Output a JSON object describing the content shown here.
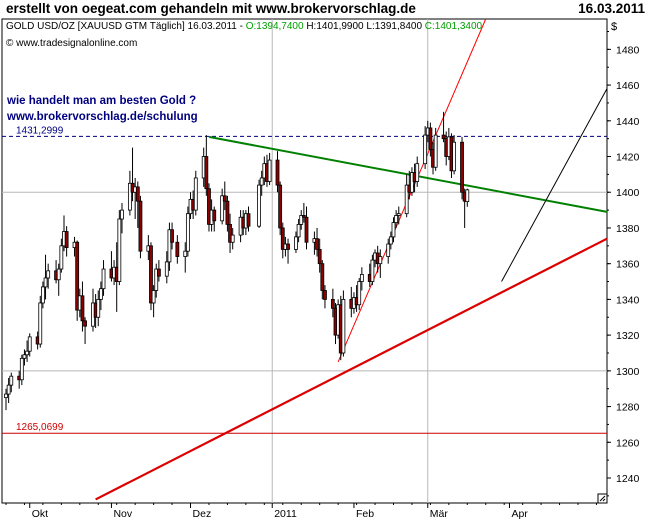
{
  "header": {
    "title": "erstellt von oegeat.com gehandeln mit www.brokervorschlag.de",
    "date": "16.03.2011"
  },
  "chart_data": {
    "type": "candlestick",
    "instrument_line": {
      "label": "GOLD USD/OZ [XAUUSD GTM  Täglich] 16.03.2011",
      "open": "O:1394,7400",
      "high": "H:1401,9900",
      "low": "L:1391,8400",
      "close": "C:1401,3400"
    },
    "copyright": "© www.tradesignalonline.com",
    "currency_label": "$",
    "annotation": {
      "line1": "wie handelt man am besten Gold ?",
      "line2": "www.brokervorschlag.de/schulung"
    },
    "levels": [
      {
        "value": 1431.2999,
        "label": "1431,2999",
        "color": "#000080",
        "style": "dashed"
      },
      {
        "value": 1265.0699,
        "label": "1265,0699",
        "color": "#cc0000",
        "style": "solid"
      }
    ],
    "y_ticks": [
      1240,
      1260,
      1280,
      1300,
      1320,
      1340,
      1360,
      1380,
      1400,
      1420,
      1440,
      1460,
      1480
    ],
    "ylim": [
      1226,
      1497
    ],
    "x_range": [
      "2010-09-22",
      "2011-05-08"
    ],
    "x_ticks": [
      {
        "date": "2010-10-01",
        "label": "Okt"
      },
      {
        "date": "2010-11-01",
        "label": "Nov"
      },
      {
        "date": "2010-12-01",
        "label": "Dez"
      },
      {
        "date": "2011-01-01",
        "label": "2011"
      },
      {
        "date": "2011-02-01",
        "label": "Feb"
      },
      {
        "date": "2011-03-01",
        "label": "Mär"
      },
      {
        "date": "2011-04-01",
        "label": "Apr"
      }
    ],
    "grid": {
      "horizontal": [
        1300,
        1400
      ],
      "vertical": [
        "2011-01-01",
        "2011-03-01"
      ]
    },
    "trendlines": [
      {
        "name": "green",
        "color": "#008000",
        "width": 2,
        "from": {
          "x": "2010-12-08",
          "y": 1431
        },
        "to": {
          "x": "2011-05-08",
          "y": 1389
        }
      },
      {
        "name": "red-long",
        "color": "#dd0000",
        "width": 2.2,
        "from": {
          "x": "2010-10-26",
          "y": 1228
        },
        "to": {
          "x": "2011-05-08",
          "y": 1374
        }
      },
      {
        "name": "red-thin",
        "color": "#ff0000",
        "width": 1,
        "from": {
          "x": "2011-01-26",
          "y": 1305
        },
        "to": {
          "x": "2011-03-23",
          "y": 1497
        }
      },
      {
        "name": "black",
        "color": "#000000",
        "width": 1,
        "from": {
          "x": "2011-03-29",
          "y": 1350
        },
        "to": {
          "x": "2011-05-08",
          "y": 1458
        }
      }
    ],
    "candles": [
      {
        "d": "2010-09-22",
        "o": 1285,
        "h": 1290,
        "l": 1278,
        "c": 1287
      },
      {
        "d": "2010-09-23",
        "o": 1287,
        "h": 1296,
        "l": 1282,
        "c": 1292
      },
      {
        "d": "2010-09-24",
        "o": 1292,
        "h": 1299,
        "l": 1288,
        "c": 1297
      },
      {
        "d": "2010-09-27",
        "o": 1297,
        "h": 1300,
        "l": 1290,
        "c": 1295
      },
      {
        "d": "2010-09-28",
        "o": 1295,
        "h": 1309,
        "l": 1292,
        "c": 1307
      },
      {
        "d": "2010-09-29",
        "o": 1307,
        "h": 1312,
        "l": 1303,
        "c": 1309
      },
      {
        "d": "2010-09-30",
        "o": 1309,
        "h": 1317,
        "l": 1305,
        "c": 1311
      },
      {
        "d": "2010-10-01",
        "o": 1311,
        "h": 1321,
        "l": 1308,
        "c": 1319
      },
      {
        "d": "2010-10-04",
        "o": 1319,
        "h": 1322,
        "l": 1312,
        "c": 1315
      },
      {
        "d": "2010-10-05",
        "o": 1315,
        "h": 1342,
        "l": 1313,
        "c": 1338
      },
      {
        "d": "2010-10-06",
        "o": 1338,
        "h": 1350,
        "l": 1335,
        "c": 1347
      },
      {
        "d": "2010-10-07",
        "o": 1347,
        "h": 1365,
        "l": 1340,
        "c": 1352
      },
      {
        "d": "2010-10-08",
        "o": 1352,
        "h": 1360,
        "l": 1346,
        "c": 1356
      },
      {
        "d": "2010-10-11",
        "o": 1356,
        "h": 1362,
        "l": 1349,
        "c": 1351
      },
      {
        "d": "2010-10-12",
        "o": 1351,
        "h": 1360,
        "l": 1342,
        "c": 1357
      },
      {
        "d": "2010-10-13",
        "o": 1357,
        "h": 1374,
        "l": 1355,
        "c": 1370
      },
      {
        "d": "2010-10-14",
        "o": 1370,
        "h": 1387,
        "l": 1367,
        "c": 1378
      },
      {
        "d": "2010-10-15",
        "o": 1378,
        "h": 1381,
        "l": 1364,
        "c": 1369
      },
      {
        "d": "2010-10-18",
        "o": 1369,
        "h": 1375,
        "l": 1364,
        "c": 1372
      },
      {
        "d": "2010-10-19",
        "o": 1372,
        "h": 1373,
        "l": 1328,
        "c": 1334
      },
      {
        "d": "2010-10-20",
        "o": 1334,
        "h": 1346,
        "l": 1330,
        "c": 1342
      },
      {
        "d": "2010-10-21",
        "o": 1342,
        "h": 1350,
        "l": 1322,
        "c": 1328
      },
      {
        "d": "2010-10-22",
        "o": 1328,
        "h": 1330,
        "l": 1315,
        "c": 1325
      },
      {
        "d": "2010-10-25",
        "o": 1325,
        "h": 1346,
        "l": 1322,
        "c": 1338
      },
      {
        "d": "2010-10-26",
        "o": 1338,
        "h": 1343,
        "l": 1324,
        "c": 1330
      },
      {
        "d": "2010-10-27",
        "o": 1330,
        "h": 1345,
        "l": 1325,
        "c": 1340
      },
      {
        "d": "2010-10-28",
        "o": 1340,
        "h": 1350,
        "l": 1334,
        "c": 1346
      },
      {
        "d": "2010-10-29",
        "o": 1346,
        "h": 1362,
        "l": 1342,
        "c": 1357
      },
      {
        "d": "2010-11-01",
        "o": 1357,
        "h": 1367,
        "l": 1350,
        "c": 1352
      },
      {
        "d": "2010-11-02",
        "o": 1352,
        "h": 1362,
        "l": 1348,
        "c": 1358
      },
      {
        "d": "2010-11-03",
        "o": 1358,
        "h": 1372,
        "l": 1333,
        "c": 1350
      },
      {
        "d": "2010-11-04",
        "o": 1350,
        "h": 1390,
        "l": 1348,
        "c": 1385
      },
      {
        "d": "2010-11-05",
        "o": 1385,
        "h": 1394,
        "l": 1377,
        "c": 1390
      },
      {
        "d": "2010-11-08",
        "o": 1390,
        "h": 1412,
        "l": 1387,
        "c": 1405
      },
      {
        "d": "2010-11-09",
        "o": 1405,
        "h": 1425,
        "l": 1395,
        "c": 1400
      },
      {
        "d": "2010-11-10",
        "o": 1400,
        "h": 1408,
        "l": 1385,
        "c": 1403
      },
      {
        "d": "2010-11-11",
        "o": 1403,
        "h": 1406,
        "l": 1380,
        "c": 1395
      },
      {
        "d": "2010-11-12",
        "o": 1395,
        "h": 1398,
        "l": 1363,
        "c": 1367
      },
      {
        "d": "2010-11-15",
        "o": 1367,
        "h": 1376,
        "l": 1362,
        "c": 1370
      },
      {
        "d": "2010-11-16",
        "o": 1370,
        "h": 1372,
        "l": 1334,
        "c": 1338
      },
      {
        "d": "2010-11-17",
        "o": 1338,
        "h": 1348,
        "l": 1330,
        "c": 1345
      },
      {
        "d": "2010-11-18",
        "o": 1345,
        "h": 1360,
        "l": 1341,
        "c": 1357
      },
      {
        "d": "2010-11-19",
        "o": 1357,
        "h": 1362,
        "l": 1350,
        "c": 1353
      },
      {
        "d": "2010-11-22",
        "o": 1353,
        "h": 1367,
        "l": 1349,
        "c": 1361
      },
      {
        "d": "2010-11-23",
        "o": 1361,
        "h": 1383,
        "l": 1356,
        "c": 1379
      },
      {
        "d": "2010-11-24",
        "o": 1379,
        "h": 1383,
        "l": 1368,
        "c": 1372
      },
      {
        "d": "2010-11-26",
        "o": 1372,
        "h": 1376,
        "l": 1360,
        "c": 1364
      },
      {
        "d": "2010-11-29",
        "o": 1364,
        "h": 1372,
        "l": 1355,
        "c": 1367
      },
      {
        "d": "2010-11-30",
        "o": 1367,
        "h": 1392,
        "l": 1364,
        "c": 1388
      },
      {
        "d": "2010-12-01",
        "o": 1388,
        "h": 1400,
        "l": 1385,
        "c": 1396
      },
      {
        "d": "2010-12-02",
        "o": 1396,
        "h": 1401,
        "l": 1385,
        "c": 1390
      },
      {
        "d": "2010-12-03",
        "o": 1390,
        "h": 1412,
        "l": 1387,
        "c": 1408
      },
      {
        "d": "2010-12-06",
        "o": 1408,
        "h": 1425,
        "l": 1403,
        "c": 1420
      },
      {
        "d": "2010-12-07",
        "o": 1420,
        "h": 1432,
        "l": 1398,
        "c": 1402
      },
      {
        "d": "2010-12-08",
        "o": 1402,
        "h": 1405,
        "l": 1378,
        "c": 1382
      },
      {
        "d": "2010-12-09",
        "o": 1382,
        "h": 1396,
        "l": 1378,
        "c": 1390
      },
      {
        "d": "2010-12-10",
        "o": 1390,
        "h": 1392,
        "l": 1378,
        "c": 1384
      },
      {
        "d": "2010-12-13",
        "o": 1384,
        "h": 1402,
        "l": 1382,
        "c": 1398
      },
      {
        "d": "2010-12-14",
        "o": 1398,
        "h": 1406,
        "l": 1390,
        "c": 1395
      },
      {
        "d": "2010-12-15",
        "o": 1395,
        "h": 1398,
        "l": 1378,
        "c": 1382
      },
      {
        "d": "2010-12-16",
        "o": 1382,
        "h": 1388,
        "l": 1366,
        "c": 1372
      },
      {
        "d": "2010-12-17",
        "o": 1372,
        "h": 1380,
        "l": 1368,
        "c": 1376
      },
      {
        "d": "2010-12-20",
        "o": 1376,
        "h": 1390,
        "l": 1372,
        "c": 1386
      },
      {
        "d": "2010-12-21",
        "o": 1386,
        "h": 1390,
        "l": 1376,
        "c": 1380
      },
      {
        "d": "2010-12-22",
        "o": 1380,
        "h": 1390,
        "l": 1376,
        "c": 1388
      },
      {
        "d": "2010-12-23",
        "o": 1388,
        "h": 1392,
        "l": 1378,
        "c": 1381
      },
      {
        "d": "2010-12-27",
        "o": 1381,
        "h": 1407,
        "l": 1380,
        "c": 1404
      },
      {
        "d": "2010-12-28",
        "o": 1404,
        "h": 1412,
        "l": 1398,
        "c": 1408
      },
      {
        "d": "2010-12-29",
        "o": 1408,
        "h": 1420,
        "l": 1404,
        "c": 1416
      },
      {
        "d": "2010-12-30",
        "o": 1416,
        "h": 1421,
        "l": 1403,
        "c": 1406
      },
      {
        "d": "2010-12-31",
        "o": 1406,
        "h": 1422,
        "l": 1404,
        "c": 1418
      },
      {
        "d": "2011-01-03",
        "o": 1418,
        "h": 1423,
        "l": 1400,
        "c": 1404
      },
      {
        "d": "2011-01-04",
        "o": 1404,
        "h": 1406,
        "l": 1376,
        "c": 1380
      },
      {
        "d": "2011-01-05",
        "o": 1380,
        "h": 1383,
        "l": 1363,
        "c": 1368
      },
      {
        "d": "2011-01-06",
        "o": 1368,
        "h": 1375,
        "l": 1364,
        "c": 1371
      },
      {
        "d": "2011-01-07",
        "o": 1371,
        "h": 1374,
        "l": 1360,
        "c": 1368
      },
      {
        "d": "2011-01-10",
        "o": 1368,
        "h": 1378,
        "l": 1366,
        "c": 1375
      },
      {
        "d": "2011-01-11",
        "o": 1375,
        "h": 1385,
        "l": 1372,
        "c": 1382
      },
      {
        "d": "2011-01-12",
        "o": 1382,
        "h": 1390,
        "l": 1379,
        "c": 1387
      },
      {
        "d": "2011-01-13",
        "o": 1387,
        "h": 1394,
        "l": 1383,
        "c": 1386
      },
      {
        "d": "2011-01-14",
        "o": 1386,
        "h": 1392,
        "l": 1368,
        "c": 1372
      },
      {
        "d": "2011-01-17",
        "o": 1372,
        "h": 1378,
        "l": 1365,
        "c": 1374
      },
      {
        "d": "2011-01-18",
        "o": 1374,
        "h": 1380,
        "l": 1364,
        "c": 1368
      },
      {
        "d": "2011-01-19",
        "o": 1368,
        "h": 1374,
        "l": 1355,
        "c": 1360
      },
      {
        "d": "2011-01-20",
        "o": 1360,
        "h": 1362,
        "l": 1340,
        "c": 1345
      },
      {
        "d": "2011-01-21",
        "o": 1345,
        "h": 1348,
        "l": 1335,
        "c": 1340
      },
      {
        "d": "2011-01-24",
        "o": 1340,
        "h": 1346,
        "l": 1330,
        "c": 1335
      },
      {
        "d": "2011-01-25",
        "o": 1335,
        "h": 1338,
        "l": 1315,
        "c": 1320
      },
      {
        "d": "2011-01-26",
        "o": 1320,
        "h": 1340,
        "l": 1318,
        "c": 1337
      },
      {
        "d": "2011-01-27",
        "o": 1337,
        "h": 1342,
        "l": 1306,
        "c": 1310
      },
      {
        "d": "2011-01-28",
        "o": 1310,
        "h": 1345,
        "l": 1308,
        "c": 1340
      },
      {
        "d": "2011-01-31",
        "o": 1340,
        "h": 1347,
        "l": 1330,
        "c": 1335
      },
      {
        "d": "2011-02-01",
        "o": 1335,
        "h": 1344,
        "l": 1332,
        "c": 1341
      },
      {
        "d": "2011-02-02",
        "o": 1341,
        "h": 1348,
        "l": 1333,
        "c": 1337
      },
      {
        "d": "2011-02-03",
        "o": 1337,
        "h": 1352,
        "l": 1334,
        "c": 1350
      },
      {
        "d": "2011-02-04",
        "o": 1350,
        "h": 1358,
        "l": 1345,
        "c": 1354
      },
      {
        "d": "2011-02-07",
        "o": 1354,
        "h": 1360,
        "l": 1347,
        "c": 1350
      },
      {
        "d": "2011-02-08",
        "o": 1350,
        "h": 1365,
        "l": 1348,
        "c": 1362
      },
      {
        "d": "2011-02-09",
        "o": 1362,
        "h": 1368,
        "l": 1358,
        "c": 1366
      },
      {
        "d": "2011-02-10",
        "o": 1366,
        "h": 1370,
        "l": 1355,
        "c": 1360
      },
      {
        "d": "2011-02-11",
        "o": 1360,
        "h": 1368,
        "l": 1352,
        "c": 1364
      },
      {
        "d": "2011-02-14",
        "o": 1364,
        "h": 1374,
        "l": 1360,
        "c": 1371
      },
      {
        "d": "2011-02-15",
        "o": 1371,
        "h": 1378,
        "l": 1368,
        "c": 1375
      },
      {
        "d": "2011-02-16",
        "o": 1375,
        "h": 1386,
        "l": 1372,
        "c": 1383
      },
      {
        "d": "2011-02-17",
        "o": 1383,
        "h": 1390,
        "l": 1380,
        "c": 1387
      },
      {
        "d": "2011-02-18",
        "o": 1387,
        "h": 1392,
        "l": 1382,
        "c": 1388
      },
      {
        "d": "2011-02-21",
        "o": 1388,
        "h": 1410,
        "l": 1386,
        "c": 1404
      },
      {
        "d": "2011-02-22",
        "o": 1404,
        "h": 1412,
        "l": 1396,
        "c": 1400
      },
      {
        "d": "2011-02-23",
        "o": 1400,
        "h": 1414,
        "l": 1398,
        "c": 1411
      },
      {
        "d": "2011-02-24",
        "o": 1411,
        "h": 1416,
        "l": 1400,
        "c": 1406
      },
      {
        "d": "2011-02-25",
        "o": 1406,
        "h": 1420,
        "l": 1403,
        "c": 1416
      },
      {
        "d": "2011-02-28",
        "o": 1416,
        "h": 1437,
        "l": 1413,
        "c": 1432
      },
      {
        "d": "2011-03-01",
        "o": 1432,
        "h": 1440,
        "l": 1428,
        "c": 1436
      },
      {
        "d": "2011-03-02",
        "o": 1436,
        "h": 1439,
        "l": 1420,
        "c": 1424
      },
      {
        "d": "2011-03-03",
        "o": 1424,
        "h": 1428,
        "l": 1410,
        "c": 1414
      },
      {
        "d": "2011-03-04",
        "o": 1414,
        "h": 1436,
        "l": 1412,
        "c": 1432
      },
      {
        "d": "2011-03-07",
        "o": 1432,
        "h": 1445,
        "l": 1428,
        "c": 1430
      },
      {
        "d": "2011-03-08",
        "o": 1430,
        "h": 1434,
        "l": 1415,
        "c": 1420
      },
      {
        "d": "2011-03-09",
        "o": 1420,
        "h": 1436,
        "l": 1418,
        "c": 1431
      },
      {
        "d": "2011-03-10",
        "o": 1431,
        "h": 1433,
        "l": 1408,
        "c": 1412
      },
      {
        "d": "2011-03-11",
        "o": 1412,
        "h": 1432,
        "l": 1410,
        "c": 1428
      },
      {
        "d": "2011-03-14",
        "o": 1428,
        "h": 1431,
        "l": 1396,
        "c": 1400
      },
      {
        "d": "2011-03-15",
        "o": 1400,
        "h": 1402,
        "l": 1380,
        "c": 1395
      },
      {
        "d": "2011-03-16",
        "o": 1394.74,
        "h": 1401.99,
        "l": 1391.84,
        "c": 1401.34
      }
    ]
  }
}
